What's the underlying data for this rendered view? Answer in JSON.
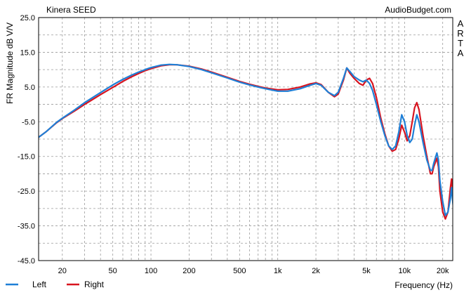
{
  "chart_data": {
    "type": "line",
    "title": "Kinera SEED",
    "source": "AudioBudget.com",
    "watermark": "ARTA",
    "xlabel": "Frequency (Hz)",
    "ylabel": "FR Magnitude dB V/V",
    "x_scale": "log",
    "xlim": [
      13,
      24000
    ],
    "ylim": [
      -45,
      25
    ],
    "grid": true,
    "legend_position": "bottom-left",
    "x_ticks": [
      {
        "value": 20,
        "label": "20"
      },
      {
        "value": 50,
        "label": "50"
      },
      {
        "value": 100,
        "label": "100"
      },
      {
        "value": 200,
        "label": "200"
      },
      {
        "value": 500,
        "label": "500"
      },
      {
        "value": 1000,
        "label": "1k"
      },
      {
        "value": 2000,
        "label": "2k"
      },
      {
        "value": 5000,
        "label": "5k"
      },
      {
        "value": 10000,
        "label": "10k"
      },
      {
        "value": 20000,
        "label": "20k"
      }
    ],
    "y_ticks": [
      {
        "value": 25,
        "label": "25.0"
      },
      {
        "value": 15,
        "label": "15.0"
      },
      {
        "value": 5,
        "label": "5.0"
      },
      {
        "value": -5,
        "label": "-5.0"
      },
      {
        "value": -15,
        "label": "-15.0"
      },
      {
        "value": -25,
        "label": "-25.0"
      },
      {
        "value": -35,
        "label": "-35.0"
      },
      {
        "value": -45,
        "label": "-45.0"
      }
    ],
    "series": [
      {
        "name": "Left",
        "color": "#1f7fd6",
        "points": [
          [
            13,
            -9.5
          ],
          [
            15,
            -7.8
          ],
          [
            18,
            -5.2
          ],
          [
            20,
            -4.0
          ],
          [
            25,
            -1.6
          ],
          [
            30,
            0.5
          ],
          [
            40,
            3.4
          ],
          [
            50,
            5.6
          ],
          [
            60,
            7.2
          ],
          [
            70,
            8.4
          ],
          [
            80,
            9.3
          ],
          [
            90,
            10.0
          ],
          [
            100,
            10.6
          ],
          [
            120,
            11.3
          ],
          [
            140,
            11.5
          ],
          [
            160,
            11.4
          ],
          [
            200,
            10.9
          ],
          [
            250,
            10.0
          ],
          [
            300,
            9.1
          ],
          [
            400,
            7.6
          ],
          [
            500,
            6.4
          ],
          [
            600,
            5.6
          ],
          [
            700,
            5.0
          ],
          [
            800,
            4.5
          ],
          [
            1000,
            3.8
          ],
          [
            1200,
            3.8
          ],
          [
            1500,
            4.5
          ],
          [
            1800,
            5.5
          ],
          [
            2000,
            6.0
          ],
          [
            2200,
            5.5
          ],
          [
            2500,
            3.5
          ],
          [
            2800,
            2.5
          ],
          [
            3000,
            3.5
          ],
          [
            3300,
            7.5
          ],
          [
            3500,
            10.5
          ],
          [
            3700,
            9.5
          ],
          [
            4000,
            8.0
          ],
          [
            4400,
            7.0
          ],
          [
            4700,
            6.5
          ],
          [
            5000,
            7.0
          ],
          [
            5300,
            6.0
          ],
          [
            5600,
            4.0
          ],
          [
            6000,
            0.0
          ],
          [
            6500,
            -5.0
          ],
          [
            7000,
            -9.0
          ],
          [
            7500,
            -12.0
          ],
          [
            8000,
            -13.0
          ],
          [
            8500,
            -12.0
          ],
          [
            9000,
            -8.0
          ],
          [
            9500,
            -3.0
          ],
          [
            10000,
            -5.0
          ],
          [
            10500,
            -9.0
          ],
          [
            11000,
            -11.0
          ],
          [
            11500,
            -10.0
          ],
          [
            12000,
            -6.0
          ],
          [
            12500,
            -3.0
          ],
          [
            13000,
            -5.0
          ],
          [
            14000,
            -11.0
          ],
          [
            15000,
            -16.0
          ],
          [
            16000,
            -19.0
          ],
          [
            16500,
            -19.0
          ],
          [
            17000,
            -17.0
          ],
          [
            18000,
            -14.0
          ],
          [
            18500,
            -16.0
          ],
          [
            19000,
            -22.0
          ],
          [
            20000,
            -28.0
          ],
          [
            21000,
            -32.0
          ],
          [
            22000,
            -31.0
          ],
          [
            23000,
            -27.0
          ],
          [
            23500,
            -24.0
          ],
          [
            24000,
            -28.0
          ],
          [
            25000,
            -34.0
          ],
          [
            26000,
            -40.0
          ]
        ]
      },
      {
        "name": "Right",
        "color": "#d8141f",
        "points": [
          [
            13,
            -9.5
          ],
          [
            15,
            -7.8
          ],
          [
            18,
            -5.3
          ],
          [
            20,
            -4.1
          ],
          [
            25,
            -1.9
          ],
          [
            30,
            0.0
          ],
          [
            40,
            2.8
          ],
          [
            50,
            4.9
          ],
          [
            60,
            6.6
          ],
          [
            70,
            7.9
          ],
          [
            80,
            8.9
          ],
          [
            90,
            9.7
          ],
          [
            100,
            10.3
          ],
          [
            120,
            11.1
          ],
          [
            140,
            11.4
          ],
          [
            160,
            11.4
          ],
          [
            200,
            11.0
          ],
          [
            250,
            10.2
          ],
          [
            300,
            9.3
          ],
          [
            400,
            7.8
          ],
          [
            500,
            6.6
          ],
          [
            600,
            5.8
          ],
          [
            700,
            5.2
          ],
          [
            800,
            4.7
          ],
          [
            1000,
            4.2
          ],
          [
            1200,
            4.3
          ],
          [
            1500,
            5.0
          ],
          [
            1800,
            5.9
          ],
          [
            2000,
            6.2
          ],
          [
            2200,
            5.7
          ],
          [
            2500,
            3.5
          ],
          [
            2800,
            2.2
          ],
          [
            3000,
            3.0
          ],
          [
            3300,
            7.0
          ],
          [
            3500,
            10.5
          ],
          [
            3700,
            9.0
          ],
          [
            4000,
            7.5
          ],
          [
            4400,
            6.0
          ],
          [
            4700,
            5.5
          ],
          [
            5000,
            7.0
          ],
          [
            5300,
            7.5
          ],
          [
            5600,
            6.0
          ],
          [
            6000,
            2.0
          ],
          [
            6500,
            -4.0
          ],
          [
            7000,
            -8.5
          ],
          [
            7500,
            -12.0
          ],
          [
            8000,
            -13.5
          ],
          [
            8500,
            -13.0
          ],
          [
            9000,
            -10.0
          ],
          [
            9500,
            -6.0
          ],
          [
            10000,
            -8.0
          ],
          [
            10500,
            -10.5
          ],
          [
            11000,
            -9.0
          ],
          [
            11500,
            -5.0
          ],
          [
            12000,
            -1.0
          ],
          [
            12500,
            0.5
          ],
          [
            13000,
            -1.5
          ],
          [
            14000,
            -9.0
          ],
          [
            15000,
            -15.0
          ],
          [
            16000,
            -20.0
          ],
          [
            16500,
            -20.0
          ],
          [
            17000,
            -18.0
          ],
          [
            18000,
            -15.5
          ],
          [
            18500,
            -18.0
          ],
          [
            19000,
            -25.0
          ],
          [
            20000,
            -31.0
          ],
          [
            21000,
            -33.0
          ],
          [
            22000,
            -31.0
          ],
          [
            23000,
            -24.0
          ],
          [
            23500,
            -21.5
          ],
          [
            24000,
            -25.0
          ],
          [
            25000,
            -34.0
          ],
          [
            26000,
            -40.0
          ]
        ]
      }
    ]
  }
}
